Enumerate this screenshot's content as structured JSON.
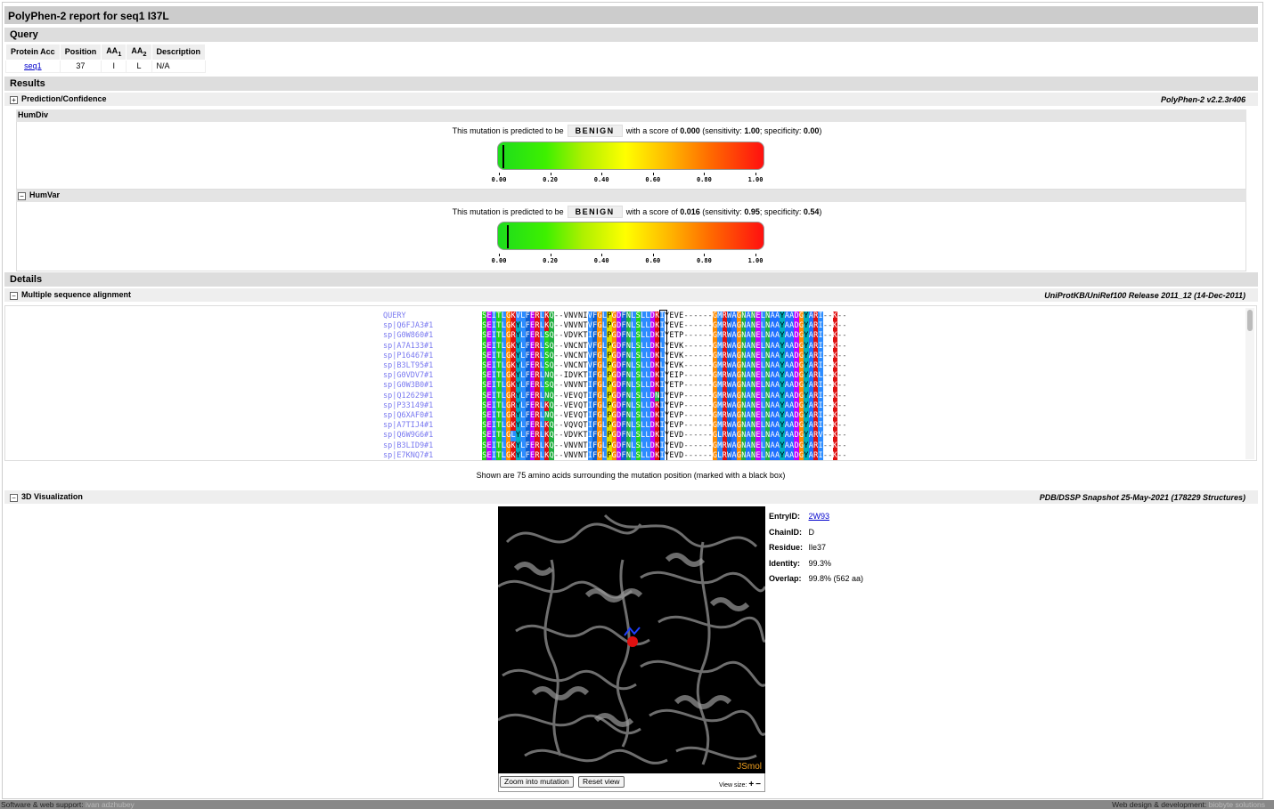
{
  "report_title": "PolyPhen-2 report for seq1 I37L",
  "query": {
    "section_label": "Query",
    "headers": [
      "Protein Acc",
      "Position",
      "AA1",
      "AA2",
      "Description"
    ],
    "aa_base": "AA",
    "aa1_sub": "1",
    "aa2_sub": "2",
    "row": {
      "protein_acc": "seq1",
      "position": "37",
      "aa1": "I",
      "aa2": "L",
      "description": "N/A"
    }
  },
  "results": {
    "section_label": "Results",
    "prediction_label": "Prediction/Confidence",
    "version": "PolyPhen-2 v2.2.3r406",
    "humdiv": {
      "label": "HumDiv",
      "text_before": "This mutation is predicted to be",
      "prediction": "BENIGN",
      "text_score": "with a score of",
      "score": "0.000",
      "text_sens": "(sensitivity:",
      "sensitivity": "1.00",
      "text_spec": "; specificity:",
      "specificity": "0.00",
      "text_end": ")",
      "score_value": 0.0
    },
    "humvar": {
      "label": "HumVar",
      "text_before": "This mutation is predicted to be",
      "prediction": "BENIGN",
      "text_score": "with a score of",
      "score": "0.016",
      "text_sens": "(sensitivity:",
      "sensitivity": "0.95",
      "text_spec": "; specificity:",
      "specificity": "0.54",
      "text_end": ")",
      "score_value": 0.016
    },
    "ticks": [
      "0.00",
      "0.20",
      "0.40",
      "0.60",
      "0.80",
      "1.00"
    ]
  },
  "details": {
    "section_label": "Details",
    "msa_label": "Multiple sequence alignment",
    "msa_source": "UniProtKB/UniRef100 Release 2011_12 (14-Dec-2011)",
    "msa_rows": [
      {
        "id": "QUERY",
        "seq": "SEITLGKVLFERLKQ--VNVNIVFGLPGDFNLSLLDKIYEVE------GMRWAGNANELNAAYAADGYARI--K--"
      },
      {
        "id": "sp|Q6FJA3#1",
        "seq": "SEITLGKYLFERLKQ--VNVNTVFGLPGDFNLSLLDKIYEVE------GMRWAGNANELNAAYAADGYARI--K--"
      },
      {
        "id": "sp|G0W860#1",
        "seq": "SEITLGRYLFERLSQ--VDVKTIFGLPGDFNLSLLDKIYETP------GMRWAGNANELNAAYAADGYARI--K--"
      },
      {
        "id": "sp|A7A133#1",
        "seq": "SEITLGKYLFERLSQ--VNCNTVFGLPGDFNLSLLDKLYEVK------GMRWAGNANELNAAYAADGYARI--K--"
      },
      {
        "id": "sp|P16467#1",
        "seq": "SEITLGKYLFERLSQ--VNCNTVFGLPGDFNLSLLDKLYEVK------GMRWAGNANELNAAYAADGYARI--K--"
      },
      {
        "id": "sp|B3LT95#1",
        "seq": "SEITLGKYLFERLSQ--VNCNTVFGLPGDFNLSLLDKLYEVK------GMRWAGNANELNAAYAADGYARI--K--"
      },
      {
        "id": "sp|G0VDV7#1",
        "seq": "SEITLGKYLFERLNQ--IDVKTIFGLPGDFNLSLLDKIYEIP------GMRWAGNANELNAAYAADGYARL--K--"
      },
      {
        "id": "sp|G0W3B0#1",
        "seq": "SEITLGKYLFERLSQ--VNVNTIFGLPGDFNLSLLDKIYETP------GMRWAGNANELNAAYAADGYARI--K--"
      },
      {
        "id": "sp|Q12629#1",
        "seq": "SEITLGRYLFERLNQ--VEVQTIFGLPGDFNLSLLDNIYEVP------GMRWAGNANELNAAYAADGYARI--K--"
      },
      {
        "id": "sp|P33149#1",
        "seq": "SEITLGRYLFERLKQ--VEVQTIFGLPGDFNLSLLDKIYEVP------GMRWAGNANELNAAYAADGYARI--K--"
      },
      {
        "id": "sp|Q6XAF0#1",
        "seq": "SEITLGRYLFERLNQ--VEVQTIFGLPGDFNLSLLDKIYEVP------GMRWAGNANELNAAYAADGYARI--K--"
      },
      {
        "id": "sp|A7TIJ4#1",
        "seq": "SEITLGKYLFERLKQ--VQVQTIFGLPGDFNLSLLDKIYEVP------GMRWAGNANELNAAYAADGYARI--K--"
      },
      {
        "id": "sp|Q6W9G6#1",
        "seq": "SEITLGLYLFERLKQ--VDVKTIFGLPGDFNLSLLDKIYEVD------GLRWAGNANELNAAYAADGYARV--K--"
      },
      {
        "id": "sp|B3LID9#1",
        "seq": "SEITLGKYLFERLKQ--VNVNTIFGLPGDFNLSLLDKIYEVD------GMRWAGNANELNAAYAADGYARI--K--"
      },
      {
        "id": "sp|E7KNQ7#1",
        "seq": "SEITLGKYLFERLKQ--VNVNTIFGLPGDFNLSLLDKIYEVD------GLRWAGNANELNAAYAADGYARI--K--"
      }
    ],
    "msa_caption": "Shown are 75 amino acids surrounding the mutation position (marked with a black box)",
    "viz_label": "3D Visualization",
    "viz_source": "PDB/DSSP Snapshot 25-May-2021 (178229 Structures)",
    "viewer_brand": "JSmol",
    "zoom_button": "Zoom into mutation",
    "reset_button": "Reset view",
    "view_size_label": "View size:",
    "structure_info": [
      {
        "key": "EntryID:",
        "value": "2W93",
        "link": true
      },
      {
        "key": "ChainID:",
        "value": "D"
      },
      {
        "key": "Residue:",
        "value": "Ile37"
      },
      {
        "key": "Identity:",
        "value": "99.3%"
      },
      {
        "key": "Overlap:",
        "value": "99.8% (562 aa)"
      }
    ]
  },
  "footer": {
    "left_label": "Software & web support:",
    "left_name": "ivan adzhubey",
    "right_label": "Web design & development:",
    "right_name": "biobyte solutions"
  },
  "aa_colors": {
    "S": "#21d31a",
    "T": "#21d31a",
    "E": "#c000ff",
    "D": "#c000ff",
    "I": "#2c8cff",
    "L": "#2c8cff",
    "V": "#2c8cff",
    "M": "#2c8cff",
    "G": "#ff8c00",
    "K": "#e01010",
    "R": "#e01010",
    "F": "#1060d0",
    "Y": "#00b0c0",
    "W": "#1060d0",
    "Q": "#20b040",
    "N": "#20b040",
    "P": "#e0e000",
    "C": "#ff7070",
    "A": "#1f70ff",
    "H": "#00a0a0"
  }
}
